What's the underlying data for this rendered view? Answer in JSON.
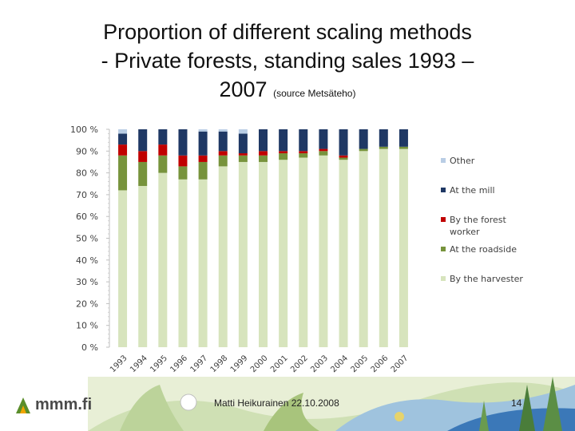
{
  "slide": {
    "title_line1": "Proportion of different scaling methods",
    "title_line2": "- Private forests, standing sales 1993 –",
    "title_line3": "2007",
    "title_source": "(source Metsäteho)",
    "logo_text": "mmm.fi",
    "presenter": "Matti Heikurainen 22.10.2008",
    "page_number": "14"
  },
  "chart_data": {
    "type": "bar",
    "stacked": true,
    "title": "",
    "xlabel": "",
    "ylabel": "",
    "ylim": [
      0,
      100
    ],
    "y_ticks": [
      "0 %",
      "10 %",
      "20 %",
      "30 %",
      "40 %",
      "50 %",
      "60 %",
      "70 %",
      "80 %",
      "90 %",
      "100 %"
    ],
    "categories": [
      "1993",
      "1994",
      "1995",
      "1996",
      "1997",
      "1998",
      "1999",
      "2000",
      "2001",
      "2002",
      "2003",
      "2004",
      "2005",
      "2006",
      "2007"
    ],
    "series": [
      {
        "name": "By the harvester",
        "color": "#d7e4bd",
        "values": [
          72,
          74,
          80,
          77,
          77,
          83,
          85,
          85,
          86,
          87,
          88,
          86,
          90,
          91,
          91
        ]
      },
      {
        "name": "At the roadside",
        "color": "#77933c",
        "values": [
          16,
          11,
          8,
          6,
          8,
          5,
          3,
          3,
          3,
          2,
          2,
          1,
          1,
          1,
          1
        ]
      },
      {
        "name": "By the forest worker",
        "color": "#c00000",
        "values": [
          5,
          5,
          5,
          5,
          3,
          2,
          1,
          2,
          1,
          1,
          1,
          1,
          0,
          0,
          0
        ]
      },
      {
        "name": "At the mill",
        "color": "#1f3864",
        "values": [
          5,
          10,
          7,
          12,
          11,
          9,
          9,
          10,
          10,
          10,
          9,
          12,
          9,
          8,
          8
        ]
      },
      {
        "name": "Other",
        "color": "#b9cde5",
        "values": [
          2,
          0,
          0,
          0,
          1,
          1,
          2,
          0,
          0,
          0,
          0,
          0,
          0,
          0,
          0
        ]
      }
    ],
    "legend_order": [
      "Other",
      "At the mill",
      "By the forest worker",
      "At the roadside",
      "By the harvester"
    ],
    "legend_position": "right",
    "grid": false
  }
}
